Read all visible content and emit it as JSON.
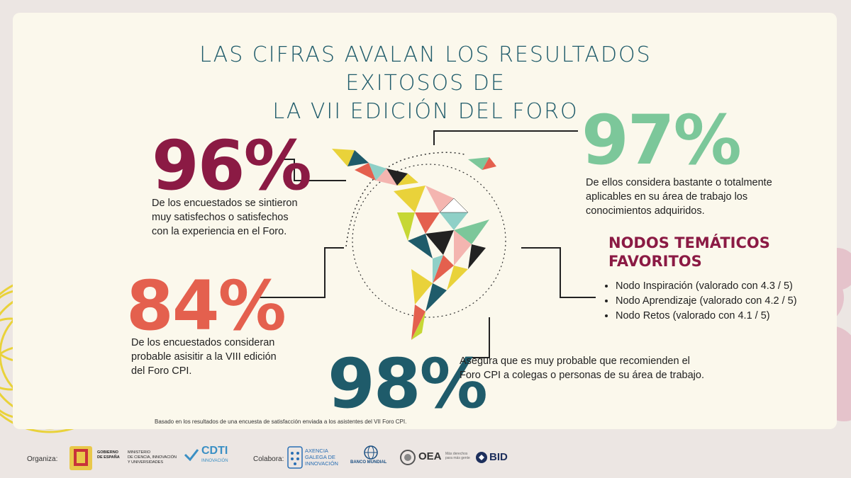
{
  "title": {
    "line1": "LAS CIFRAS AVALAN LOS RESULTADOS EXITOSOS DE",
    "line2": "LA VII EDICIÓN DEL FORO"
  },
  "stats": {
    "s96": {
      "value": "96%",
      "color": "#8b1a44",
      "text": [
        "De los encuestados se sintieron",
        "muy satisfechos o satisfechos",
        "con la experiencia en el Foro."
      ]
    },
    "s97": {
      "value": "97%",
      "color": "#7cc79a",
      "text": [
        "De ellos considera bastante o totalmente",
        "aplicables en su área de trabajo los",
        "conocimientos adquiridos."
      ]
    },
    "s84": {
      "value": "84%",
      "color": "#e4604e",
      "text": [
        "De los encuestados consideran",
        "probable asisitir a la VIII edición",
        "del Foro CPI."
      ]
    },
    "s98": {
      "value": "98%",
      "color": "#1f5b6a",
      "text": [
        "Asegura que es muy probable que recomienden el",
        "Foro CPI a colegas o personas de su área de trabajo."
      ]
    }
  },
  "nodos": {
    "title1": "NODOS TEMÁTICOS",
    "title2": "FAVORITOS",
    "items": [
      "Nodo Inspiración (valorado con 4.3 / 5)",
      "Nodo Aprendizaje (valorado con 4.2 / 5)",
      "Nodo Retos (valorado con 4.1 / 5)"
    ]
  },
  "footnote": "Basado en los resultados de una encuesta de satisfacción enviada a los asistentes del VII  Foro CPI.",
  "footer": {
    "organiza": "Organiza:",
    "gobierno": [
      "GOBIERNO",
      "DE ESPAÑA"
    ],
    "ministerio": [
      "MINISTERIO",
      "DE CIENCIA, INNOVACIÓN",
      "Y UNIVERSIDADES"
    ],
    "cdti": "CDTI",
    "cdti_sub": "INNOVACIÓN",
    "colabora": "Colabora:",
    "galega": [
      "AXENCIA",
      "GALEGA DE",
      "INNOVACIÓN"
    ],
    "banco": "BANCO MUNDIAL",
    "oea": "OEA",
    "oea_sub": [
      "Más derechos",
      "para más gente"
    ],
    "bid": "BID"
  }
}
